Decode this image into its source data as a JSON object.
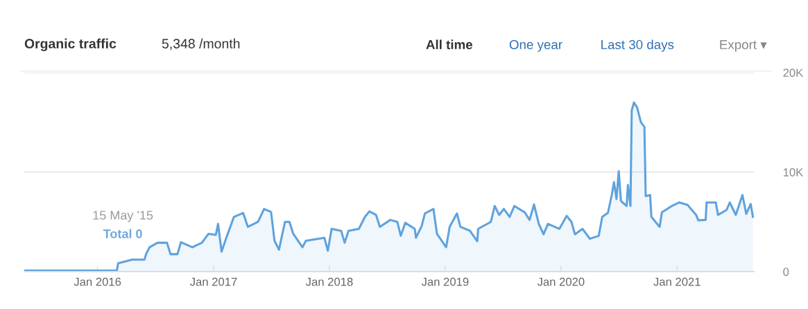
{
  "chart_data": {
    "type": "area",
    "title": "Organic traffic",
    "subtitle": "5,348 /month",
    "annotations": [
      "All time",
      "One year",
      "Last 30 days",
      "Export ▾",
      "15 May '15",
      "Total 0"
    ],
    "series": [
      {
        "color": "#5fa2dd",
        "x": [
          "2015-05-15",
          "2016-03-02",
          "2016-03-06",
          "2016-04-19",
          "2016-05-28",
          "2016-06-02",
          "2016-06-13",
          "2016-07-08",
          "2016-08-07",
          "2016-08-18",
          "2016-09-09",
          "2016-09-20",
          "2016-10-26",
          "2016-11-25",
          "2016-12-16",
          "2017-01-08",
          "2017-01-15",
          "2017-01-26",
          "2017-02-10",
          "2017-03-06",
          "2017-04-04",
          "2017-04-19",
          "2017-05-21",
          "2017-06-09",
          "2017-07-01",
          "2017-07-12",
          "2017-07-26",
          "2017-08-14",
          "2017-08-28",
          "2017-09-09",
          "2017-10-08",
          "2017-10-19",
          "2017-12-16",
          "2017-12-27",
          "2018-01-08",
          "2018-02-07",
          "2018-02-18",
          "2018-03-02",
          "2018-04-04",
          "2018-04-23",
          "2018-05-07",
          "2018-05-28",
          "2018-06-09",
          "2018-07-12",
          "2018-08-03",
          "2018-08-14",
          "2018-08-28",
          "2018-09-27",
          "2018-10-01",
          "2018-10-19",
          "2018-10-29",
          "2018-11-25",
          "2018-12-06",
          "2019-01-04",
          "2019-01-15",
          "2019-02-07",
          "2019-02-18",
          "2019-03-20",
          "2019-04-12",
          "2019-04-15",
          "2019-05-25",
          "2019-06-06",
          "2019-06-20",
          "2019-07-05",
          "2019-07-23",
          "2019-08-07",
          "2019-09-09",
          "2019-09-24",
          "2019-10-08",
          "2019-10-23",
          "2019-11-07",
          "2019-11-21",
          "2019-12-27",
          "2020-01-19",
          "2020-02-03",
          "2020-02-14",
          "2020-03-09",
          "2020-04-01",
          "2020-04-29",
          "2020-05-10",
          "2020-05-28",
          "2020-06-09",
          "2020-06-16",
          "2020-06-24",
          "2020-07-01",
          "2020-07-08",
          "2020-07-26",
          "2020-07-30",
          "2020-08-07",
          "2020-08-11",
          "2020-08-18",
          "2020-08-28",
          "2020-09-09",
          "2020-09-20",
          "2020-09-24",
          "2020-10-08",
          "2020-10-12",
          "2020-11-07",
          "2020-11-14",
          "2020-12-13",
          "2021-01-08",
          "2021-02-03",
          "2021-03-02",
          "2021-03-09",
          "2021-04-01",
          "2021-04-04",
          "2021-05-03",
          "2021-05-10",
          "2021-06-06",
          "2021-06-16",
          "2021-07-05",
          "2021-07-26",
          "2021-08-07",
          "2021-08-21",
          "2021-08-28"
        ],
        "values": [
          100,
          100,
          840,
          1200,
          1200,
          1750,
          2450,
          2900,
          2900,
          1750,
          1750,
          2950,
          2450,
          2900,
          3800,
          3700,
          4800,
          2000,
          3400,
          5500,
          5900,
          4500,
          5000,
          6300,
          6000,
          3100,
          2200,
          5000,
          5000,
          3800,
          2450,
          3100,
          3400,
          2100,
          4300,
          4100,
          2900,
          4100,
          4300,
          5500,
          6050,
          5700,
          4500,
          5200,
          5000,
          3600,
          4900,
          4300,
          3400,
          4600,
          5850,
          6300,
          3800,
          2450,
          4500,
          5850,
          4500,
          4100,
          3050,
          4300,
          5000,
          6600,
          5700,
          6300,
          5500,
          6600,
          5950,
          5200,
          6750,
          4800,
          3750,
          4800,
          4300,
          5600,
          5000,
          3750,
          4300,
          3300,
          3600,
          5500,
          5900,
          7700,
          9000,
          7300,
          10100,
          7100,
          6600,
          8700,
          6600,
          16200,
          17000,
          16500,
          15000,
          14550,
          7600,
          7700,
          5500,
          4500,
          5950,
          6550,
          6950,
          6700,
          5700,
          5150,
          5200,
          6950,
          6950,
          5700,
          6200,
          6950,
          5700,
          7700,
          5800,
          6800,
          5500
        ]
      }
    ],
    "xlim": [
      "2015-05-15",
      "2021-08-31"
    ],
    "xticks": [
      {
        "value": "2016-01",
        "label": "Jan 2016"
      },
      {
        "value": "2017-01",
        "label": "Jan 2017"
      },
      {
        "value": "2018-01",
        "label": "Jan 2018"
      },
      {
        "value": "2019-01",
        "label": "Jan 2019"
      },
      {
        "value": "2020-01",
        "label": "Jan 2020"
      },
      {
        "value": "2021-01",
        "label": "Jan 2021"
      }
    ],
    "ylim": [
      0,
      20000
    ],
    "yticks": [
      {
        "value": 0,
        "label": "0"
      },
      {
        "value": 10000,
        "label": "10K"
      },
      {
        "value": 20000,
        "label": "20K"
      }
    ],
    "grid": "y",
    "legend": false
  }
}
